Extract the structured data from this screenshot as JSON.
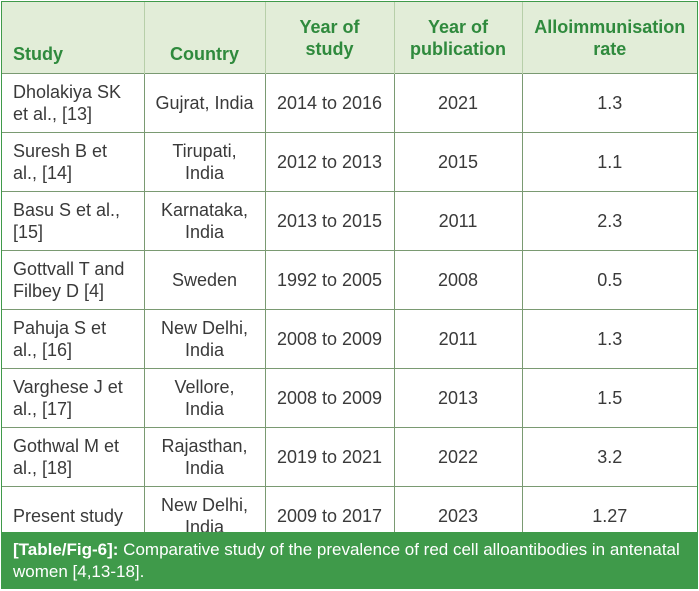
{
  "table": {
    "headers": [
      "Study",
      "Country",
      "Year of study",
      "Year of publication",
      "Alloimmunisation rate"
    ],
    "header_lines": [
      [
        "Study"
      ],
      [
        "Country"
      ],
      [
        "Year of",
        "study"
      ],
      [
        "Year of",
        "publication"
      ],
      [
        "Alloimmunisation",
        "rate"
      ]
    ],
    "rows": [
      {
        "study": [
          "Dholakiya SK",
          "et al., [13]"
        ],
        "country": [
          "Gujrat, India"
        ],
        "years": "2014 to 2016",
        "publication": "2021",
        "rate": "1.3"
      },
      {
        "study": [
          "Suresh B et",
          "al., [14]"
        ],
        "country": [
          "Tirupati,",
          "India"
        ],
        "years": "2012 to 2013",
        "publication": "2015",
        "rate": "1.1"
      },
      {
        "study": [
          "Basu S et al.,",
          "[15]"
        ],
        "country": [
          "Karnataka,",
          "India"
        ],
        "years": "2013 to 2015",
        "publication": "2011",
        "rate": "2.3"
      },
      {
        "study": [
          "Gottvall T and",
          "Filbey D [4]"
        ],
        "country": [
          "Sweden"
        ],
        "years": "1992 to 2005",
        "publication": "2008",
        "rate": "0.5"
      },
      {
        "study": [
          "Pahuja S et",
          "al., [16]"
        ],
        "country": [
          "New Delhi,",
          "India"
        ],
        "years": "2008 to 2009",
        "publication": "2011",
        "rate": "1.3"
      },
      {
        "study": [
          "Varghese J et",
          "al., [17]"
        ],
        "country": [
          "Vellore,",
          "India"
        ],
        "years": "2008 to 2009",
        "publication": "2013",
        "rate": "1.5"
      },
      {
        "study": [
          "Gothwal M et",
          "al., [18]"
        ],
        "country": [
          "Rajasthan,",
          "India"
        ],
        "years": "2019 to 2021",
        "publication": "2022",
        "rate": "3.2"
      },
      {
        "study": [
          "Present study"
        ],
        "country": [
          "New Delhi,",
          "India"
        ],
        "years": "2009 to 2017",
        "publication": "2023",
        "rate": "1.27"
      }
    ]
  },
  "caption": {
    "label": "[Table/Fig-6]:",
    "text": " Comparative study of the prevalence of red cell alloantibodies in antenatal women [4,13-18]."
  },
  "colors": {
    "accent_green": "#3f9a4a",
    "header_background": "#e2edd8",
    "header_text": "#2f8a3d"
  }
}
